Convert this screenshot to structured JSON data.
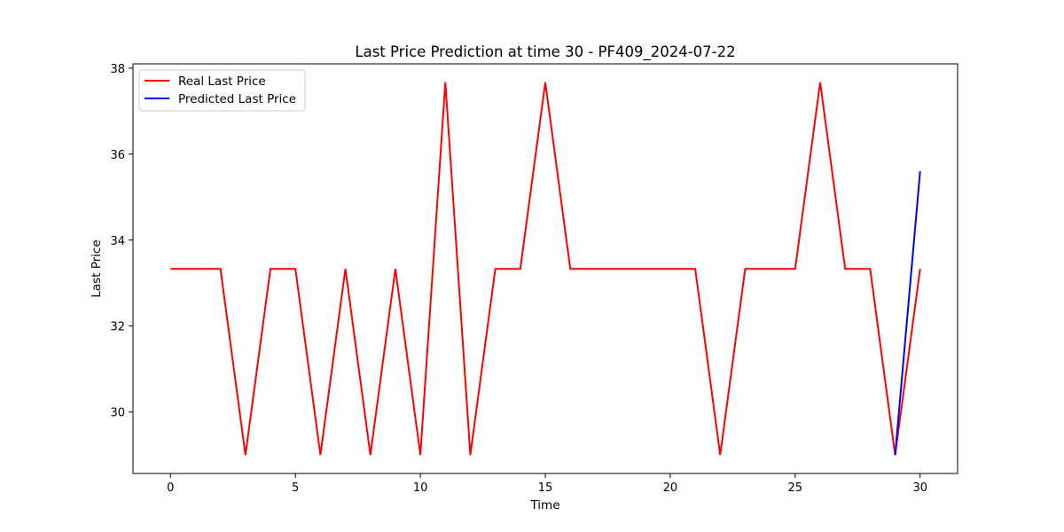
{
  "chart_data": {
    "type": "line",
    "title": "Last Price Prediction at time 30 - PF409_2024-07-22",
    "xlabel": "Time",
    "ylabel": "Last Price",
    "xlim": [
      -1.5,
      31.5
    ],
    "ylim": [
      28.57,
      38.1
    ],
    "xticks": [
      0,
      5,
      10,
      15,
      20,
      25,
      30
    ],
    "yticks": [
      30,
      32,
      34,
      36,
      38
    ],
    "grid": false,
    "legend_position": "upper-left",
    "series": [
      {
        "name": "Real Last Price",
        "color": "#ff0000",
        "x": [
          0,
          1,
          2,
          3,
          4,
          5,
          6,
          7,
          8,
          9,
          10,
          11,
          12,
          13,
          14,
          15,
          16,
          17,
          18,
          19,
          20,
          21,
          22,
          23,
          24,
          25,
          26,
          27,
          28,
          29,
          30
        ],
        "y": [
          33.33,
          33.33,
          33.33,
          29.0,
          33.33,
          33.33,
          29.0,
          33.33,
          29.0,
          33.33,
          29.0,
          37.67,
          29.0,
          33.33,
          33.33,
          37.67,
          33.33,
          33.33,
          33.33,
          33.33,
          33.33,
          33.33,
          29.0,
          33.33,
          33.33,
          33.33,
          37.67,
          33.33,
          33.33,
          29.0,
          33.33
        ]
      },
      {
        "name": "Predicted Last Price",
        "color": "#0000ff",
        "x": [
          29,
          30
        ],
        "y": [
          29.0,
          35.6
        ]
      }
    ]
  }
}
